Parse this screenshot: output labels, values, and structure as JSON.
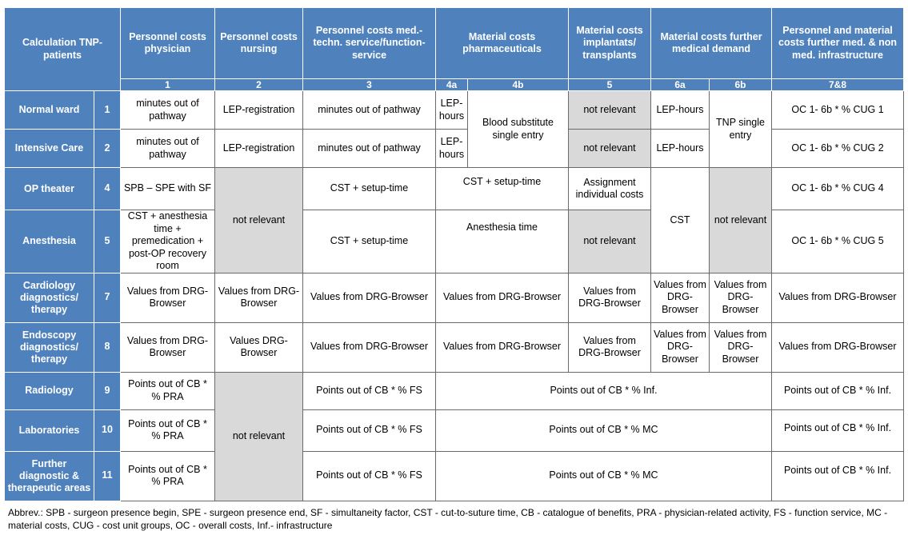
{
  "header": {
    "calc": "Calculation TNP-patients",
    "c1": "Personnel costs physician",
    "c2": "Personnel costs nursing",
    "c3": "Personnel costs med.-techn. service/function-service",
    "c4": "Material costs pharmaceuticals",
    "c5": "Material costs implantats/ transplants",
    "c6": "Material costs further medical demand",
    "c78": "Personnel and material costs further med. & non med. infrastructure"
  },
  "numbers": {
    "n1": "1",
    "n2": "2",
    "n3": "3",
    "n4a": "4a",
    "n4b": "4b",
    "n5": "5",
    "n6a": "6a",
    "n6b": "6b",
    "n78": "7&8"
  },
  "rows": {
    "normal_ward": {
      "label": "Normal ward",
      "num": "1",
      "c1": "minutes out of pathway",
      "c2": "LEP-registration",
      "c3": "minutes out of pathway",
      "c4a": "LEP-hours",
      "c5": "not relevant",
      "c6a": "LEP-hours",
      "c78": "OC 1- 6b * % CUG 1"
    },
    "intensive_care": {
      "label": "Intensive Care",
      "num": "2",
      "c1": "minutes out of pathway",
      "c2": "LEP-registration",
      "c3": "minutes out of pathway",
      "c4a": "LEP-hours",
      "c5": "not relevant",
      "c6a": "LEP-hours",
      "c78": "OC 1- 6b * % CUG 2"
    },
    "shared_4b": "Blood substitute single entry",
    "shared_6b": "TNP single entry",
    "op_theater": {
      "label": "OP theater",
      "num": "4",
      "c1": "SPB – SPE with SF",
      "c3": "CST + setup-time",
      "c4": "CST + setup-time",
      "c5": "Assignment individual costs",
      "c78": "OC 1- 6b * % CUG 4"
    },
    "shared_op_c2": "not relevant",
    "shared_op_6a": "CST",
    "shared_op_6b": "not relevant",
    "anesthesia": {
      "label": "Anesthesia",
      "num": "5",
      "c1": "CST + anesthesia time + premedication + post-OP recovery room",
      "c3": "CST + setup-time",
      "c4": "Anesthesia time",
      "c5": "not relevant",
      "c78": "OC 1- 6b * % CUG 5"
    },
    "cardiology": {
      "label": "Cardiology diagnostics/ therapy",
      "num": "7",
      "c1": "Values from DRG-Browser",
      "c2": "Values from DRG-Browser",
      "c3": "Values from DRG-Browser",
      "c4": "Values from DRG-Browser",
      "c5": "Values from DRG-Browser",
      "c6a": "Values from DRG-Browser",
      "c6b": "Values from DRG-Browser",
      "c78": "Values from DRG-Browser"
    },
    "endoscopy": {
      "label": "Endoscopy diagnostics/ therapy",
      "num": "8",
      "c1": "Values from DRG-Browser",
      "c2": "Values DRG-Browser",
      "c3": "Values from DRG-Browser",
      "c4": "Values from DRG-Browser",
      "c5": "Values from DRG-Browser",
      "c6a": "Values from DRG-Browser",
      "c6b": "Values from DRG-Browser",
      "c78": "Values from DRG-Browser"
    },
    "radiology": {
      "label": "Radiology",
      "num": "9",
      "c1": "Points out of CB * % PRA",
      "c3": "Points out of CB * % FS",
      "c4_6": "Points out of CB * % Inf.",
      "c78": "Points out of CB * % Inf."
    },
    "shared_diag_c2": "not relevant",
    "laboratories": {
      "label": "Laboratories",
      "num": "10",
      "c1": "Points out of CB * % PRA",
      "c3": "Points out of CB * % FS",
      "c4_6": "Points out of CB * % MC",
      "c78": "Points out of CB * % Inf."
    },
    "further": {
      "label": "Further diagnostic & therapeutic areas",
      "num": "11",
      "c1": "Points out of CB * % PRA",
      "c3": "Points out of CB * % FS",
      "c4_6": "Points out of CB * % MC",
      "c78": "Points out of CB * % Inf."
    }
  },
  "abbreviations": "Abbrev.: SPB - surgeon presence begin, SPE - surgeon presence end, SF - simultaneity factor, CST - cut-to-suture time, CB - catalogue of benefits, PRA - physician-related activity, FS - function service, MC -material costs, CUG - cost unit groups, OC - overall costs, Inf.- infrastructure",
  "colors": {
    "header_bg": "#4f81bd",
    "header_text": "#ffffff",
    "not_relevant_bg": "#d9d9d9",
    "border": "#6a6a6a"
  }
}
